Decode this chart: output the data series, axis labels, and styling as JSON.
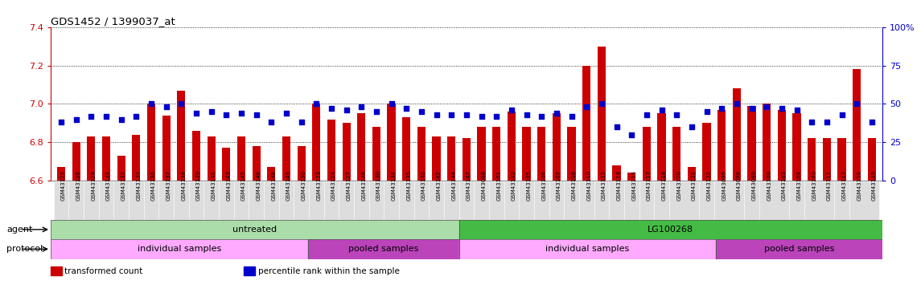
{
  "title": "GDS1452 / 1399037_at",
  "samples": [
    "GSM43125",
    "GSM43126",
    "GSM43129",
    "GSM43131",
    "GSM43132",
    "GSM43133",
    "GSM43136",
    "GSM43137",
    "GSM43138",
    "GSM43139",
    "GSM43141",
    "GSM43143",
    "GSM43145",
    "GSM43146",
    "GSM43148",
    "GSM43149",
    "GSM43150",
    "GSM43123",
    "GSM43124",
    "GSM43127",
    "GSM43128",
    "GSM43130",
    "GSM43134",
    "GSM43135",
    "GSM43140",
    "GSM43142",
    "GSM43144",
    "GSM43147",
    "GSM43098",
    "GSM43101",
    "GSM43102",
    "GSM43105",
    "GSM43106",
    "GSM43107",
    "GSM43108",
    "GSM43110",
    "GSM43112",
    "GSM43114",
    "GSM43115",
    "GSM43117",
    "GSM43118",
    "GSM43120",
    "GSM43121",
    "GSM43122",
    "GSM43095",
    "GSM43096",
    "GSM43099",
    "GSM43100",
    "GSM43103",
    "GSM43104",
    "GSM43109",
    "GSM43111",
    "GSM43113",
    "GSM43116",
    "GSM43119"
  ],
  "red_values": [
    6.67,
    6.8,
    6.83,
    6.83,
    6.73,
    6.84,
    7.0,
    6.94,
    7.07,
    6.86,
    6.83,
    6.77,
    6.83,
    6.78,
    6.67,
    6.83,
    6.78,
    7.0,
    6.92,
    6.9,
    6.95,
    6.88,
    7.0,
    6.93,
    6.88,
    6.83,
    6.83,
    6.82,
    6.88,
    6.88,
    6.96,
    6.88,
    6.88,
    6.95,
    6.88,
    7.2,
    7.3,
    6.68,
    6.64,
    6.88,
    6.95,
    6.88,
    6.67,
    6.9,
    6.97,
    7.08,
    6.99,
    7.0,
    6.97,
    6.95,
    6.82,
    6.82,
    6.82,
    7.18,
    6.82
  ],
  "blue_values": [
    38,
    40,
    42,
    42,
    40,
    42,
    50,
    48,
    50,
    44,
    45,
    43,
    44,
    43,
    38,
    44,
    38,
    50,
    47,
    46,
    48,
    45,
    50,
    47,
    45,
    43,
    43,
    43,
    42,
    42,
    46,
    43,
    42,
    44,
    42,
    48,
    50,
    35,
    30,
    43,
    46,
    43,
    35,
    45,
    47,
    50,
    47,
    48,
    47,
    46,
    38,
    38,
    43,
    50,
    38
  ],
  "ylim_left": [
    6.6,
    7.4
  ],
  "ylim_right": [
    0,
    100
  ],
  "yticks_left": [
    6.6,
    6.8,
    7.0,
    7.2,
    7.4
  ],
  "yticks_right": [
    0,
    25,
    50,
    75,
    100
  ],
  "ytick_labels_right": [
    "0",
    "25",
    "50",
    "75",
    "100%"
  ],
  "agent_groups": [
    {
      "label": "untreated",
      "start": 0,
      "end": 27,
      "color": "#AADDAA"
    },
    {
      "label": "LG100268",
      "start": 27,
      "end": 55,
      "color": "#44BB44"
    }
  ],
  "protocol_groups": [
    {
      "label": "individual samples",
      "start": 0,
      "end": 17,
      "color": "#FFAAFF"
    },
    {
      "label": "pooled samples",
      "start": 17,
      "end": 27,
      "color": "#BB44BB"
    },
    {
      "label": "individual samples",
      "start": 27,
      "end": 44,
      "color": "#FFAAFF"
    },
    {
      "label": "pooled samples",
      "start": 44,
      "end": 55,
      "color": "#BB44BB"
    }
  ],
  "bar_color": "#CC0000",
  "dot_color": "#0000CC",
  "bg_color": "#FFFFFF",
  "axis_color_left": "#CC0000",
  "axis_color_right": "#0000CC",
  "grid_color": "#000000",
  "label_agent": "agent",
  "label_protocol": "protocol",
  "legend_items": [
    {
      "label": "transformed count",
      "color": "#CC0000"
    },
    {
      "label": "percentile rank within the sample",
      "color": "#0000CC"
    }
  ],
  "n_samples": 55
}
